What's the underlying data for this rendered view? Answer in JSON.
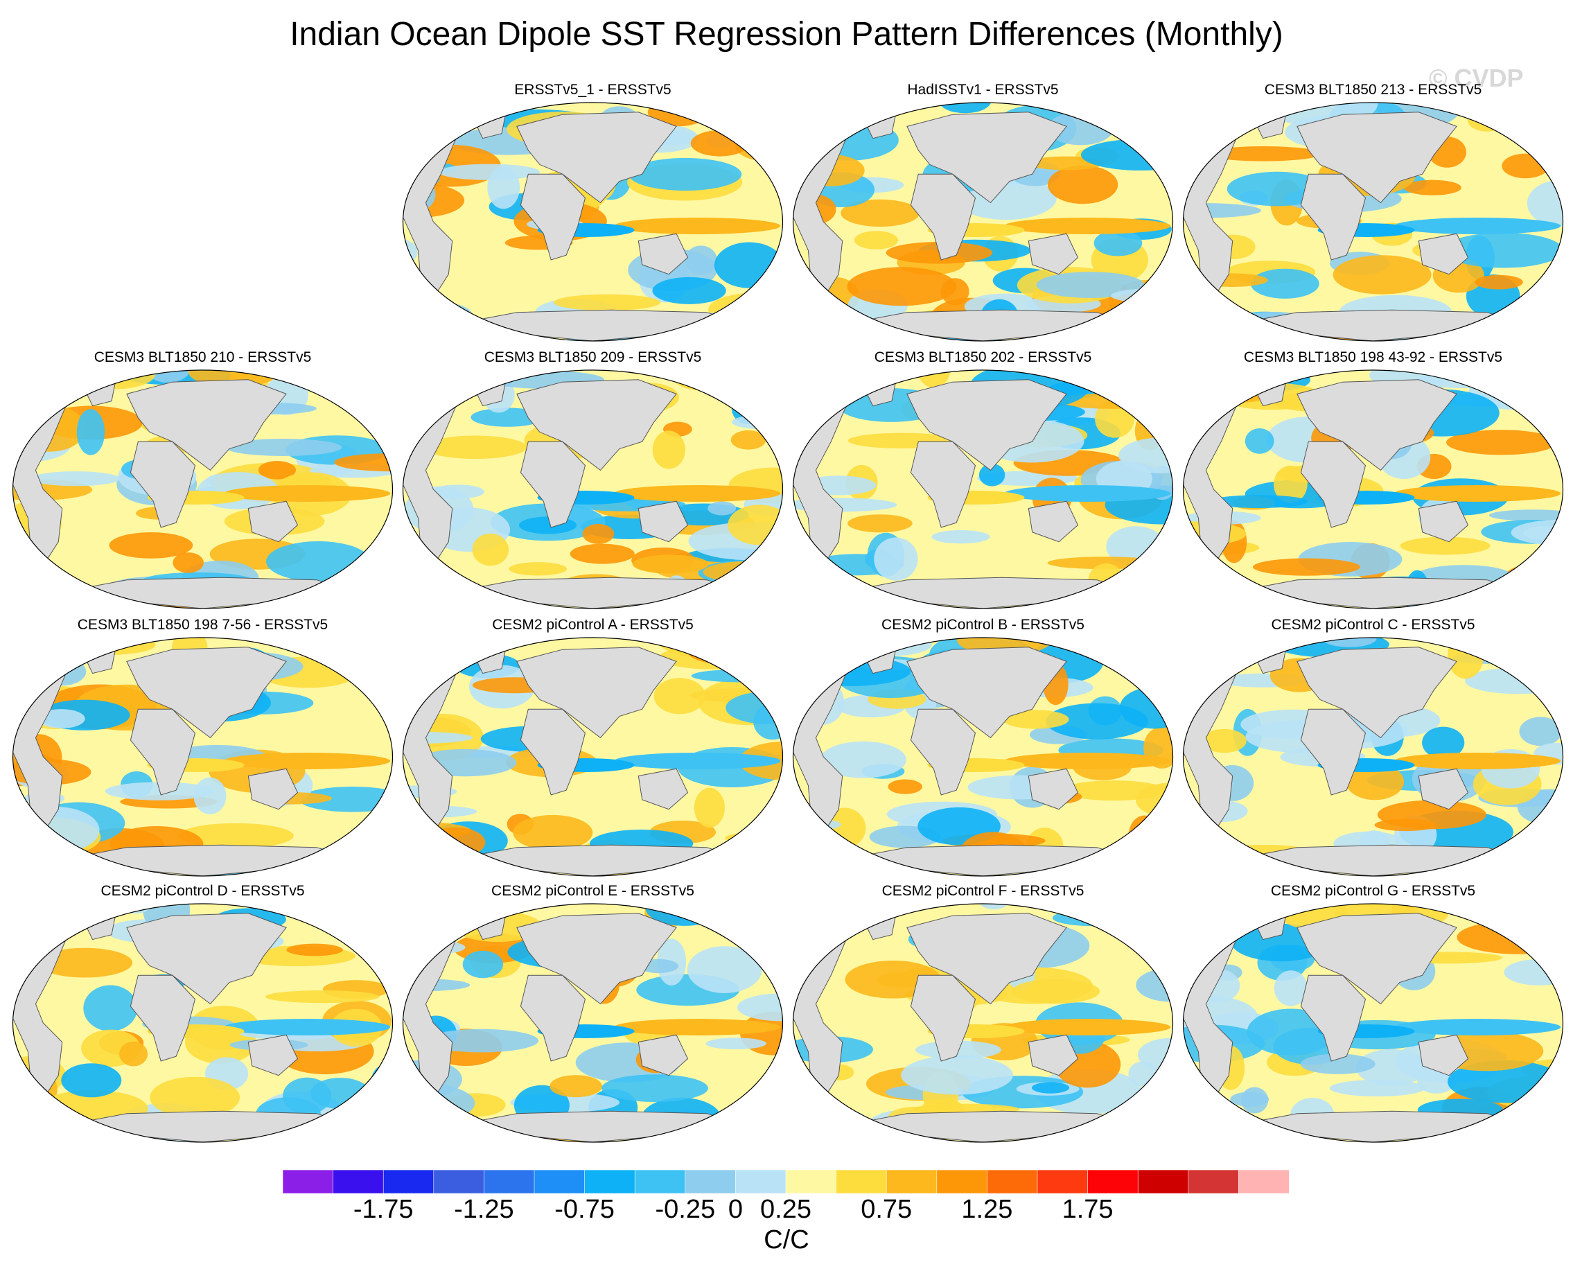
{
  "title": "Indian Ocean Dipole SST Regression Pattern Differences (Monthly)",
  "watermark": "© CVDP",
  "chart_data": {
    "type": "heatmap",
    "projection": "global robinson map panels",
    "layout": "4 rows x 4 columns (first slot empty)",
    "panels": [
      {
        "label": "ERSSTv5_1 - ERSSTv5"
      },
      {
        "label": "HadISSTv1 - ERSSTv5"
      },
      {
        "label": "CESM3 BLT1850 213 - ERSSTv5"
      },
      {
        "label": "CESM3 BLT1850 210 - ERSSTv5"
      },
      {
        "label": "CESM3 BLT1850 209 - ERSSTv5"
      },
      {
        "label": "CESM3 BLT1850 202 - ERSSTv5"
      },
      {
        "label": "CESM3 BLT1850 198 43-92 - ERSSTv5"
      },
      {
        "label": "CESM3 BLT1850 198 7-56 - ERSSTv5"
      },
      {
        "label": "CESM2 piControl A - ERSSTv5"
      },
      {
        "label": "CESM2 piControl B - ERSSTv5"
      },
      {
        "label": "CESM2 piControl C - ERSSTv5"
      },
      {
        "label": "CESM2 piControl D - ERSSTv5"
      },
      {
        "label": "CESM2 piControl E - ERSSTv5"
      },
      {
        "label": "CESM2 piControl F - ERSSTv5"
      },
      {
        "label": "CESM2 piControl G - ERSSTv5"
      }
    ],
    "colorbar": {
      "levels": [
        -2.0,
        -1.75,
        -1.5,
        -1.25,
        -1.0,
        -0.75,
        -0.5,
        -0.25,
        0,
        0.25,
        0.5,
        0.75,
        1.0,
        1.25,
        1.5,
        1.75,
        2.0
      ],
      "colors": [
        "#8b1fe8",
        "#3b10ee",
        "#1a29f0",
        "#3b5de0",
        "#2b74ee",
        "#1e8ff6",
        "#0eb1f6",
        "#3ec2f4",
        "#8ecdee",
        "#b9e2f6",
        "#fff8a3",
        "#fddc3e",
        "#fcb81c",
        "#fd9708",
        "#fd6a08",
        "#fd3a10",
        "#fd0308",
        "#cf0000",
        "#d53434",
        "#ffb3b3"
      ],
      "tick_labels": [
        "-1.75",
        "-1.25",
        "-0.75",
        "-0.25",
        "0",
        "0.25",
        "0.75",
        "1.25",
        "1.75"
      ],
      "tick_values": [
        -1.75,
        -1.25,
        -0.75,
        -0.25,
        0,
        0.25,
        0.75,
        1.25,
        1.75
      ],
      "units": "C/C"
    }
  }
}
